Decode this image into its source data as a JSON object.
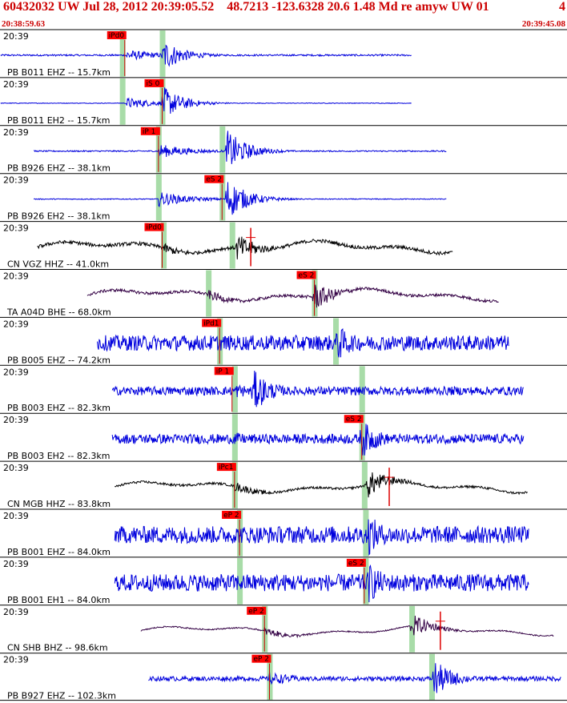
{
  "header": {
    "title": "60432032 UW Jul 28, 2012 20:39:05.52    48.7213 -123.6328 20.6 1.48 Md re amyw UW 01",
    "version": "4",
    "start_time": "20:38:59.63",
    "end_time": "20:39:45.08"
  },
  "colors": {
    "header_text": "#cc0000",
    "wave_blue": "#0000dd",
    "wave_black": "#000000",
    "wave_purple": "#330044",
    "pick_box": "#ff0000",
    "window_green": "#a8dca8",
    "pick_line": "#cc0000",
    "divider": "#000000"
  },
  "chart_data": {
    "type": "line",
    "title": "60432032 UW Jul 28, 2012 20:39:05.52",
    "x_unit": "seconds",
    "xlim": [
      0,
      45.45
    ],
    "traces": [
      {
        "time": "20:39",
        "label": "PB B011 EHZ -- 15.7km",
        "color": "blue",
        "start": 0.05,
        "end": 33.0,
        "amp": 0.35,
        "noise": 0.05,
        "onset": 10.1,
        "peak": 13.1,
        "pick": {
          "label": "iPd0",
          "t": 10.0
        },
        "windows": [
          9.8,
          13.0
        ]
      },
      {
        "time": "20:39",
        "label": "PB B011 EH2 -- 15.7km",
        "color": "blue",
        "start": 0.05,
        "end": 33.0,
        "amp": 0.35,
        "noise": 0.02,
        "onset": 10.1,
        "peak": 13.1,
        "pick": {
          "label": "iS 0",
          "t": 13.0
        },
        "windows": [
          9.8,
          13.0
        ]
      },
      {
        "time": "20:39",
        "label": "PB B926 EHZ -- 38.1km",
        "color": "blue",
        "start": 2.7,
        "end": 35.8,
        "amp": 0.45,
        "noise": 0.03,
        "onset": 12.7,
        "peak": 18.2,
        "pick": {
          "label": "iP 1",
          "t": 12.7
        },
        "windows": [
          12.7,
          17.8
        ]
      },
      {
        "time": "20:39",
        "label": "PB B926 EH2 -- 38.1km",
        "color": "blue",
        "start": 2.7,
        "end": 35.8,
        "amp": 0.45,
        "noise": 0.02,
        "onset": 12.7,
        "peak": 18.2,
        "pick": {
          "label": "eS 2",
          "t": 17.8
        },
        "windows": [
          12.7,
          17.8
        ]
      },
      {
        "time": "20:39",
        "label": "CN VGZ HHZ -- 41.0km",
        "color": "black",
        "start": 3.0,
        "end": 36.3,
        "amp": 0.3,
        "noise": 0.12,
        "onset": 13.1,
        "peak": 19.0,
        "pick": {
          "label": "iPd0",
          "t": 13.0
        },
        "windows": [
          13.1,
          18.6
        ],
        "marker": 20.1
      },
      {
        "time": "20:39",
        "label": "TA A04D BHE -- 68.0km",
        "color": "purple",
        "start": 7.0,
        "end": 40.0,
        "amp": 0.3,
        "noise": 0.1,
        "onset": 16.7,
        "peak": 25.2,
        "pick": {
          "label": "eS 2",
          "t": 25.2
        },
        "windows": [
          16.7,
          25.2
        ]
      },
      {
        "time": "20:39",
        "label": "PB B005 EHZ -- 74.2km",
        "color": "blue",
        "start": 7.8,
        "end": 40.8,
        "amp": 0.4,
        "noise": 0.4,
        "onset": 17.6,
        "peak": 27.0,
        "pick": {
          "label": "iPd1",
          "t": 17.6
        },
        "windows": [
          17.6,
          26.9
        ]
      },
      {
        "time": "20:39",
        "label": "PB B003 EHZ -- 82.3km",
        "color": "blue",
        "start": 9.0,
        "end": 42.0,
        "amp": 0.45,
        "noise": 0.2,
        "onset": 18.8,
        "peak": 20.3,
        "pick": {
          "label": "iP 1",
          "t": 18.6
        },
        "windows": [
          18.8,
          29.0
        ]
      },
      {
        "time": "20:39",
        "label": "PB B003 EH2 -- 82.3km",
        "color": "blue",
        "start": 9.0,
        "end": 42.0,
        "amp": 0.4,
        "noise": 0.25,
        "onset": 18.8,
        "peak": 29.0,
        "pick": {
          "label": "eS 2",
          "t": 29.0
        },
        "windows": [
          18.8,
          29.0
        ]
      },
      {
        "time": "20:39",
        "label": "CN MGB HHZ -- 83.8km",
        "color": "black",
        "start": 9.2,
        "end": 42.3,
        "amp": 0.3,
        "noise": 0.08,
        "onset": 18.8,
        "peak": 29.5,
        "pick": {
          "label": "iPc1",
          "t": 18.8
        },
        "windows": [
          18.8,
          29.2
        ],
        "marker": 31.2
      },
      {
        "time": "20:39",
        "label": "PB B001 EHZ -- 84.0km",
        "color": "blue",
        "start": 9.2,
        "end": 42.4,
        "amp": 0.45,
        "noise": 0.4,
        "onset": 19.2,
        "peak": 29.5,
        "pick": {
          "label": "eP 2",
          "t": 19.2
        },
        "windows": [
          19.2,
          29.3
        ]
      },
      {
        "time": "20:39",
        "label": "PB B001 EH1 -- 84.0km",
        "color": "blue",
        "start": 9.2,
        "end": 42.4,
        "amp": 0.45,
        "noise": 0.4,
        "onset": 19.2,
        "peak": 29.5,
        "pick": {
          "label": "eS 2",
          "t": 29.2
        },
        "windows": [
          19.2,
          29.3
        ]
      },
      {
        "time": "20:39",
        "label": "CN SHB BHZ -- 98.6km",
        "color": "purple",
        "start": 11.3,
        "end": 44.4,
        "amp": 0.25,
        "noise": 0.05,
        "onset": 21.2,
        "peak": 33.0,
        "pick": {
          "label": "eP 2",
          "t": 21.2
        },
        "windows": [
          21.2,
          33.0
        ],
        "marker": 35.3
      },
      {
        "time": "20:39",
        "label": "PB B927 EHZ -- 102.3km",
        "color": "blue",
        "start": 11.9,
        "end": 45.0,
        "amp": 0.4,
        "noise": 0.12,
        "onset": 21.6,
        "peak": 34.8,
        "pick": {
          "label": "eP 2",
          "t": 21.6
        },
        "windows": [
          21.6,
          34.6
        ]
      }
    ]
  }
}
